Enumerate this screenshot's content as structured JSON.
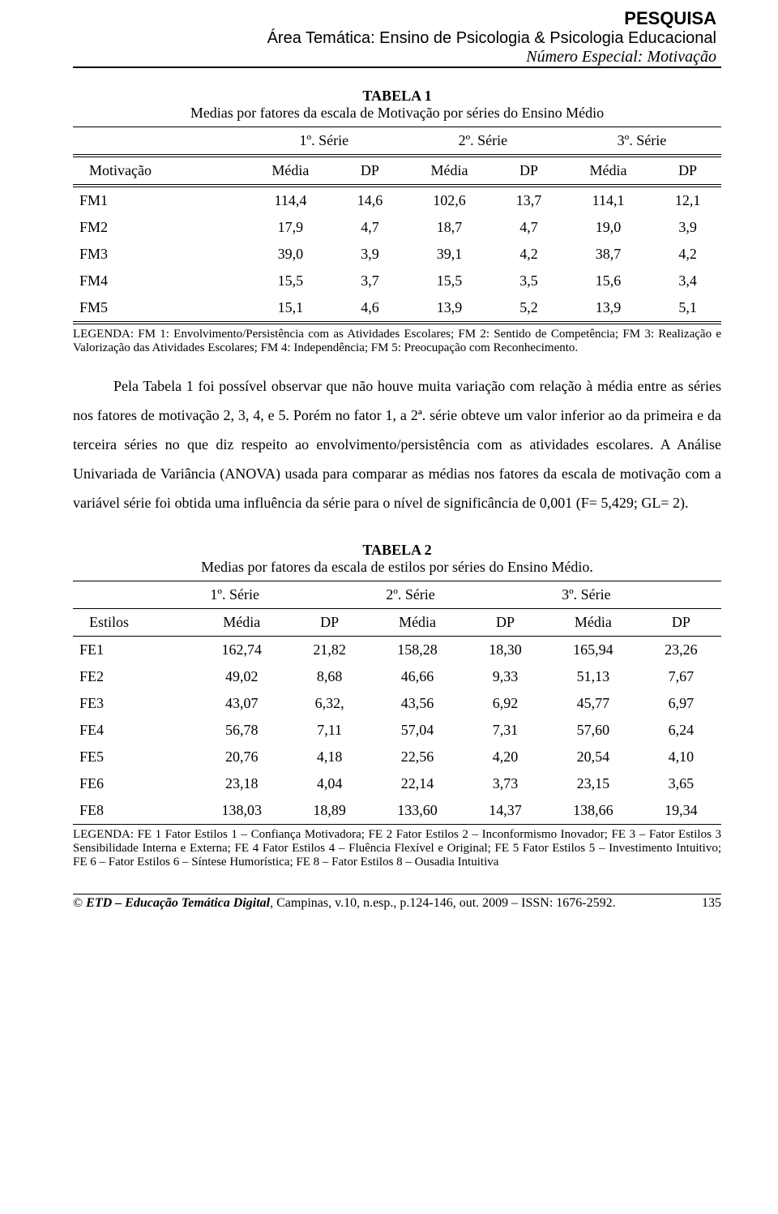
{
  "header": {
    "line1": "PESQUISA",
    "line2": "Área Temática: Ensino de Psicologia & Psicologia Educacional",
    "line3": "Número Especial: Motivação"
  },
  "table1": {
    "title": "TABELA 1",
    "caption": "Medias por fatores da escala de Motivação por séries do Ensino Médio",
    "series_labels": [
      "1º. Série",
      "2º. Série",
      "3º. Série"
    ],
    "corner_label": "Motivação",
    "stat_labels": [
      "Média",
      "DP",
      "Média",
      "DP",
      "Média",
      "DP"
    ],
    "rows": [
      {
        "label": "FM1",
        "vals": [
          "114,4",
          "14,6",
          "102,6",
          "13,7",
          "114,1",
          "12,1"
        ]
      },
      {
        "label": "FM2",
        "vals": [
          "17,9",
          "4,7",
          "18,7",
          "4,7",
          "19,0",
          "3,9"
        ]
      },
      {
        "label": "FM3",
        "vals": [
          "39,0",
          "3,9",
          "39,1",
          "4,2",
          "38,7",
          "4,2"
        ]
      },
      {
        "label": "FM4",
        "vals": [
          "15,5",
          "3,7",
          "15,5",
          "3,5",
          "15,6",
          "3,4"
        ]
      },
      {
        "label": "FM5",
        "vals": [
          "15,1",
          "4,6",
          "13,9",
          "5,2",
          "13,9",
          "5,1"
        ]
      }
    ],
    "legend_label": "LEGENDA:",
    "legend_text": " FM 1: Envolvimento/Persistência com as Atividades Escolares; FM 2:  Sentido de Competência; FM 3: Realização e Valorização das Atividades Escolares; FM 4: Independência; FM 5: Preocupação com Reconhecimento."
  },
  "paragraph": "Pela Tabela 1 foi possível observar que não houve muita variação com relação à média entre as séries nos fatores de motivação 2, 3, 4, e 5. Porém no fator 1, a 2ª. série obteve um valor inferior ao da primeira e da terceira séries no que diz respeito ao envolvimento/persistência com as atividades escolares. A Análise Univariada de Variância (ANOVA) usada para comparar as médias nos fatores da escala de motivação com a variável série foi obtida uma influência da série para o nível de significância de 0,001 (F= 5,429; GL= 2).",
  "table2": {
    "title": "TABELA 2",
    "caption": "Medias por fatores da escala de estilos por séries do Ensino Médio.",
    "series_labels": [
      "1º. Série",
      "2º. Série",
      "3º. Série"
    ],
    "corner_label": "Estilos",
    "stat_labels": [
      "Média",
      "DP",
      "Média",
      "DP",
      "Média",
      "DP"
    ],
    "rows": [
      {
        "label": "FE1",
        "vals": [
          "162,74",
          "21,82",
          "158,28",
          "18,30",
          "165,94",
          "23,26"
        ]
      },
      {
        "label": "FE2",
        "vals": [
          "49,02",
          "8,68",
          "46,66",
          "9,33",
          "51,13",
          "7,67"
        ]
      },
      {
        "label": "FE3",
        "vals": [
          "43,07",
          "6,32,",
          "43,56",
          "6,92",
          "45,77",
          "6,97"
        ]
      },
      {
        "label": "FE4",
        "vals": [
          "56,78",
          "7,11",
          "57,04",
          "7,31",
          "57,60",
          "6,24"
        ]
      },
      {
        "label": "FE5",
        "vals": [
          "20,76",
          "4,18",
          "22,56",
          "4,20",
          "20,54",
          "4,10"
        ]
      },
      {
        "label": "FE6",
        "vals": [
          "23,18",
          "4,04",
          "22,14",
          "3,73",
          "23,15",
          "3,65"
        ]
      },
      {
        "label": "FE8",
        "vals": [
          "138,03",
          "18,89",
          "133,60",
          "14,37",
          "138,66",
          "19,34"
        ]
      }
    ],
    "legend_text": "LEGENDA: FE 1   Fator Estilos 1 – Confiança Motivadora; FE 2   Fator Estilos 2 – Inconformismo Inovador; FE 3 – Fator Estilos 3   Sensibilidade Interna e Externa; FE 4   Fator Estilos 4 – Fluência Flexível e Original; FE 5   Fator Estilos 5 – Investimento Intuitivo; FE 6 – Fator Estilos 6 – Síntese Humorística; FE 8  – Fator Estilos 8 – Ousadia Intuitiva"
  },
  "footer": {
    "copyright": "©",
    "journal_abbrev": "ETD – Educação Temática Digital",
    "citation_rest": ", Campinas, v.10, n.esp., p.124-146, out. 2009 – ISSN: 1676-2592.",
    "page_number": "135"
  }
}
